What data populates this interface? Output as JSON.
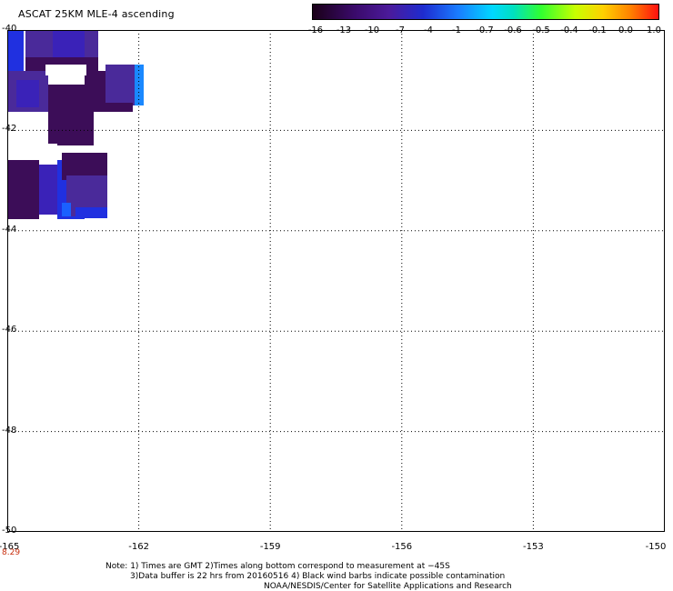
{
  "title": "ASCAT 25KM MLE-4 ascending",
  "colorbar": {
    "ticks": [
      "-16",
      "-13",
      "-10",
      "-7",
      "-4",
      "-1",
      "-0.7",
      "-0.6",
      "-0.5",
      "-0.4",
      "-0.1",
      "0.0",
      "1.0"
    ],
    "colors": [
      "#1a0018",
      "#3a0a6a",
      "#4b1a9a",
      "#1e2cd0",
      "#1a7cff",
      "#00d8ff",
      "#30ff30",
      "#c8ff00",
      "#ffd000",
      "#ff8000",
      "#ff1010"
    ]
  },
  "map": {
    "lat_labels": [
      "-40",
      "-42",
      "-44",
      "-46",
      "-48",
      "-50"
    ],
    "lon_labels": [
      "-165",
      "-162",
      "-159",
      "-156",
      "-153",
      "-150"
    ],
    "lat_range": [
      -50,
      -40
    ],
    "lon_range": [
      -165,
      -150
    ],
    "grid": "dotted",
    "time_label": "8.29"
  },
  "notes": [
    "Note: 1) Times are GMT 2)Times along bottom correspond to measurement at −45S",
    "3)Data buffer is 22 hrs from 20160516 4) Black wind barbs indicate possible contamination",
    "NOAA/NESDIS/Center for Satellite Applications and Research"
  ],
  "colors": {
    "dark_purple": "#3c0d58",
    "mid_purple": "#4a2a9a",
    "indigo": "#3a22b8",
    "blue": "#2030e0",
    "bright_blue": "#1a60ff",
    "sky_blue": "#1a88ff"
  }
}
